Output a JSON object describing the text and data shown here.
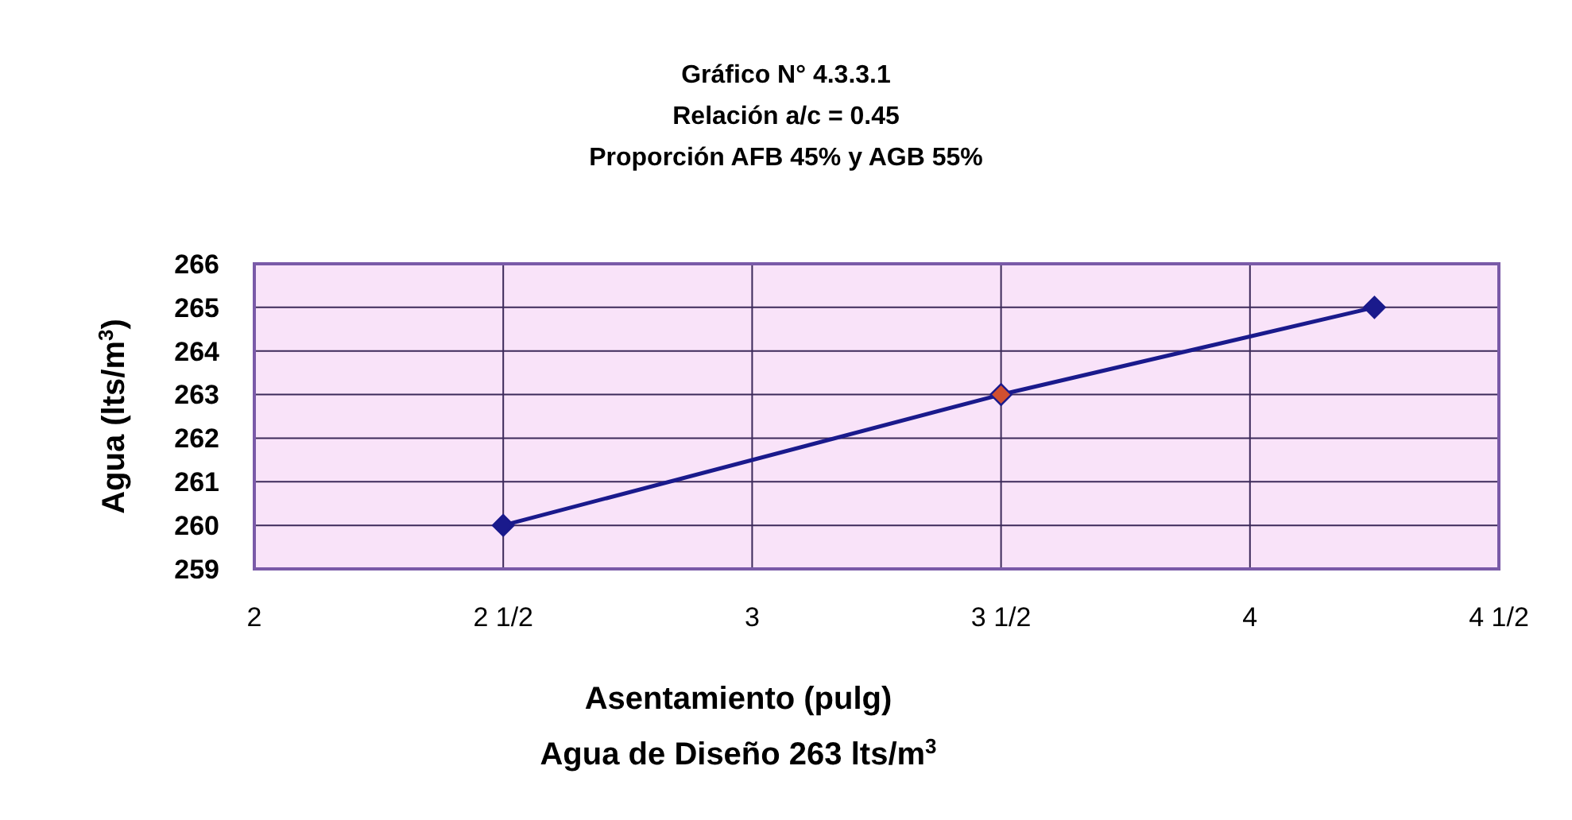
{
  "chart_data": {
    "type": "line",
    "title": "Gráfico N° 4.3.3.1",
    "subtitle": "Relación a/c = 0.45\nProporción AFB 45% y AGB 55%",
    "xlabel": "Asentamiento (pulg)",
    "ylabel": "Agua (lts/m$^{3}$)",
    "annotations": [
      "Agua de Diseño 263 lts/m$^{3}$"
    ],
    "x": [
      2.5,
      3.5,
      4.25
    ],
    "series": [
      {
        "color": "#1a1a8c",
        "values": [
          260,
          263,
          265
        ],
        "colors": [
          "#1a1a8c",
          "#d05030",
          "#1a1a8c"
        ]
      }
    ],
    "xlim": [
      2,
      4.5
    ],
    "xticks": [
      2,
      {
        "value": 2.5,
        "label": "2 1/2"
      },
      3,
      {
        "value": 3.5,
        "label": "3 1/2"
      },
      4,
      {
        "value": 4.5,
        "label": "4 1/2"
      }
    ],
    "ylim": [
      259,
      266
    ],
    "yticks": [
      259,
      260,
      261,
      262,
      263,
      264,
      265,
      266
    ],
    "grid": true,
    "marker": "diamond",
    "line_style": "solid"
  }
}
